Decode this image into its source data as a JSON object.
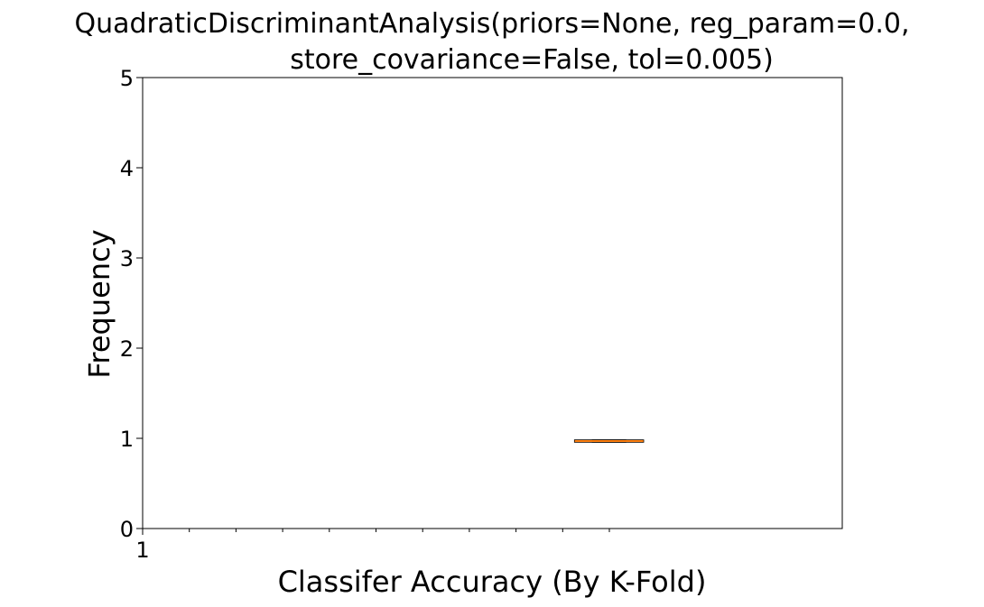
{
  "chart_data": {
    "type": "box",
    "title_lines": [
      "QuadraticDiscriminantAnalysis(priors=None, reg_param=0.0,",
      "store_covariance=False, tol=0.005)"
    ],
    "xlabel": "Classifer Accuracy (By K-Fold)",
    "ylabel": "Frequency",
    "ylim": [
      0,
      5
    ],
    "yticks": [
      "0",
      "1",
      "2",
      "3",
      "4",
      "5"
    ],
    "xticks": [
      "1"
    ],
    "xlim": [
      0,
      1.5
    ],
    "box": {
      "position": 1,
      "median": 0.97,
      "q1": 0.96,
      "q3": 0.98,
      "whisker_low": 0.96,
      "whisker_high": 0.98
    },
    "grid": false,
    "colors": {
      "box": "#000000",
      "median": "#ff7f0e",
      "axes": "#000000"
    }
  }
}
